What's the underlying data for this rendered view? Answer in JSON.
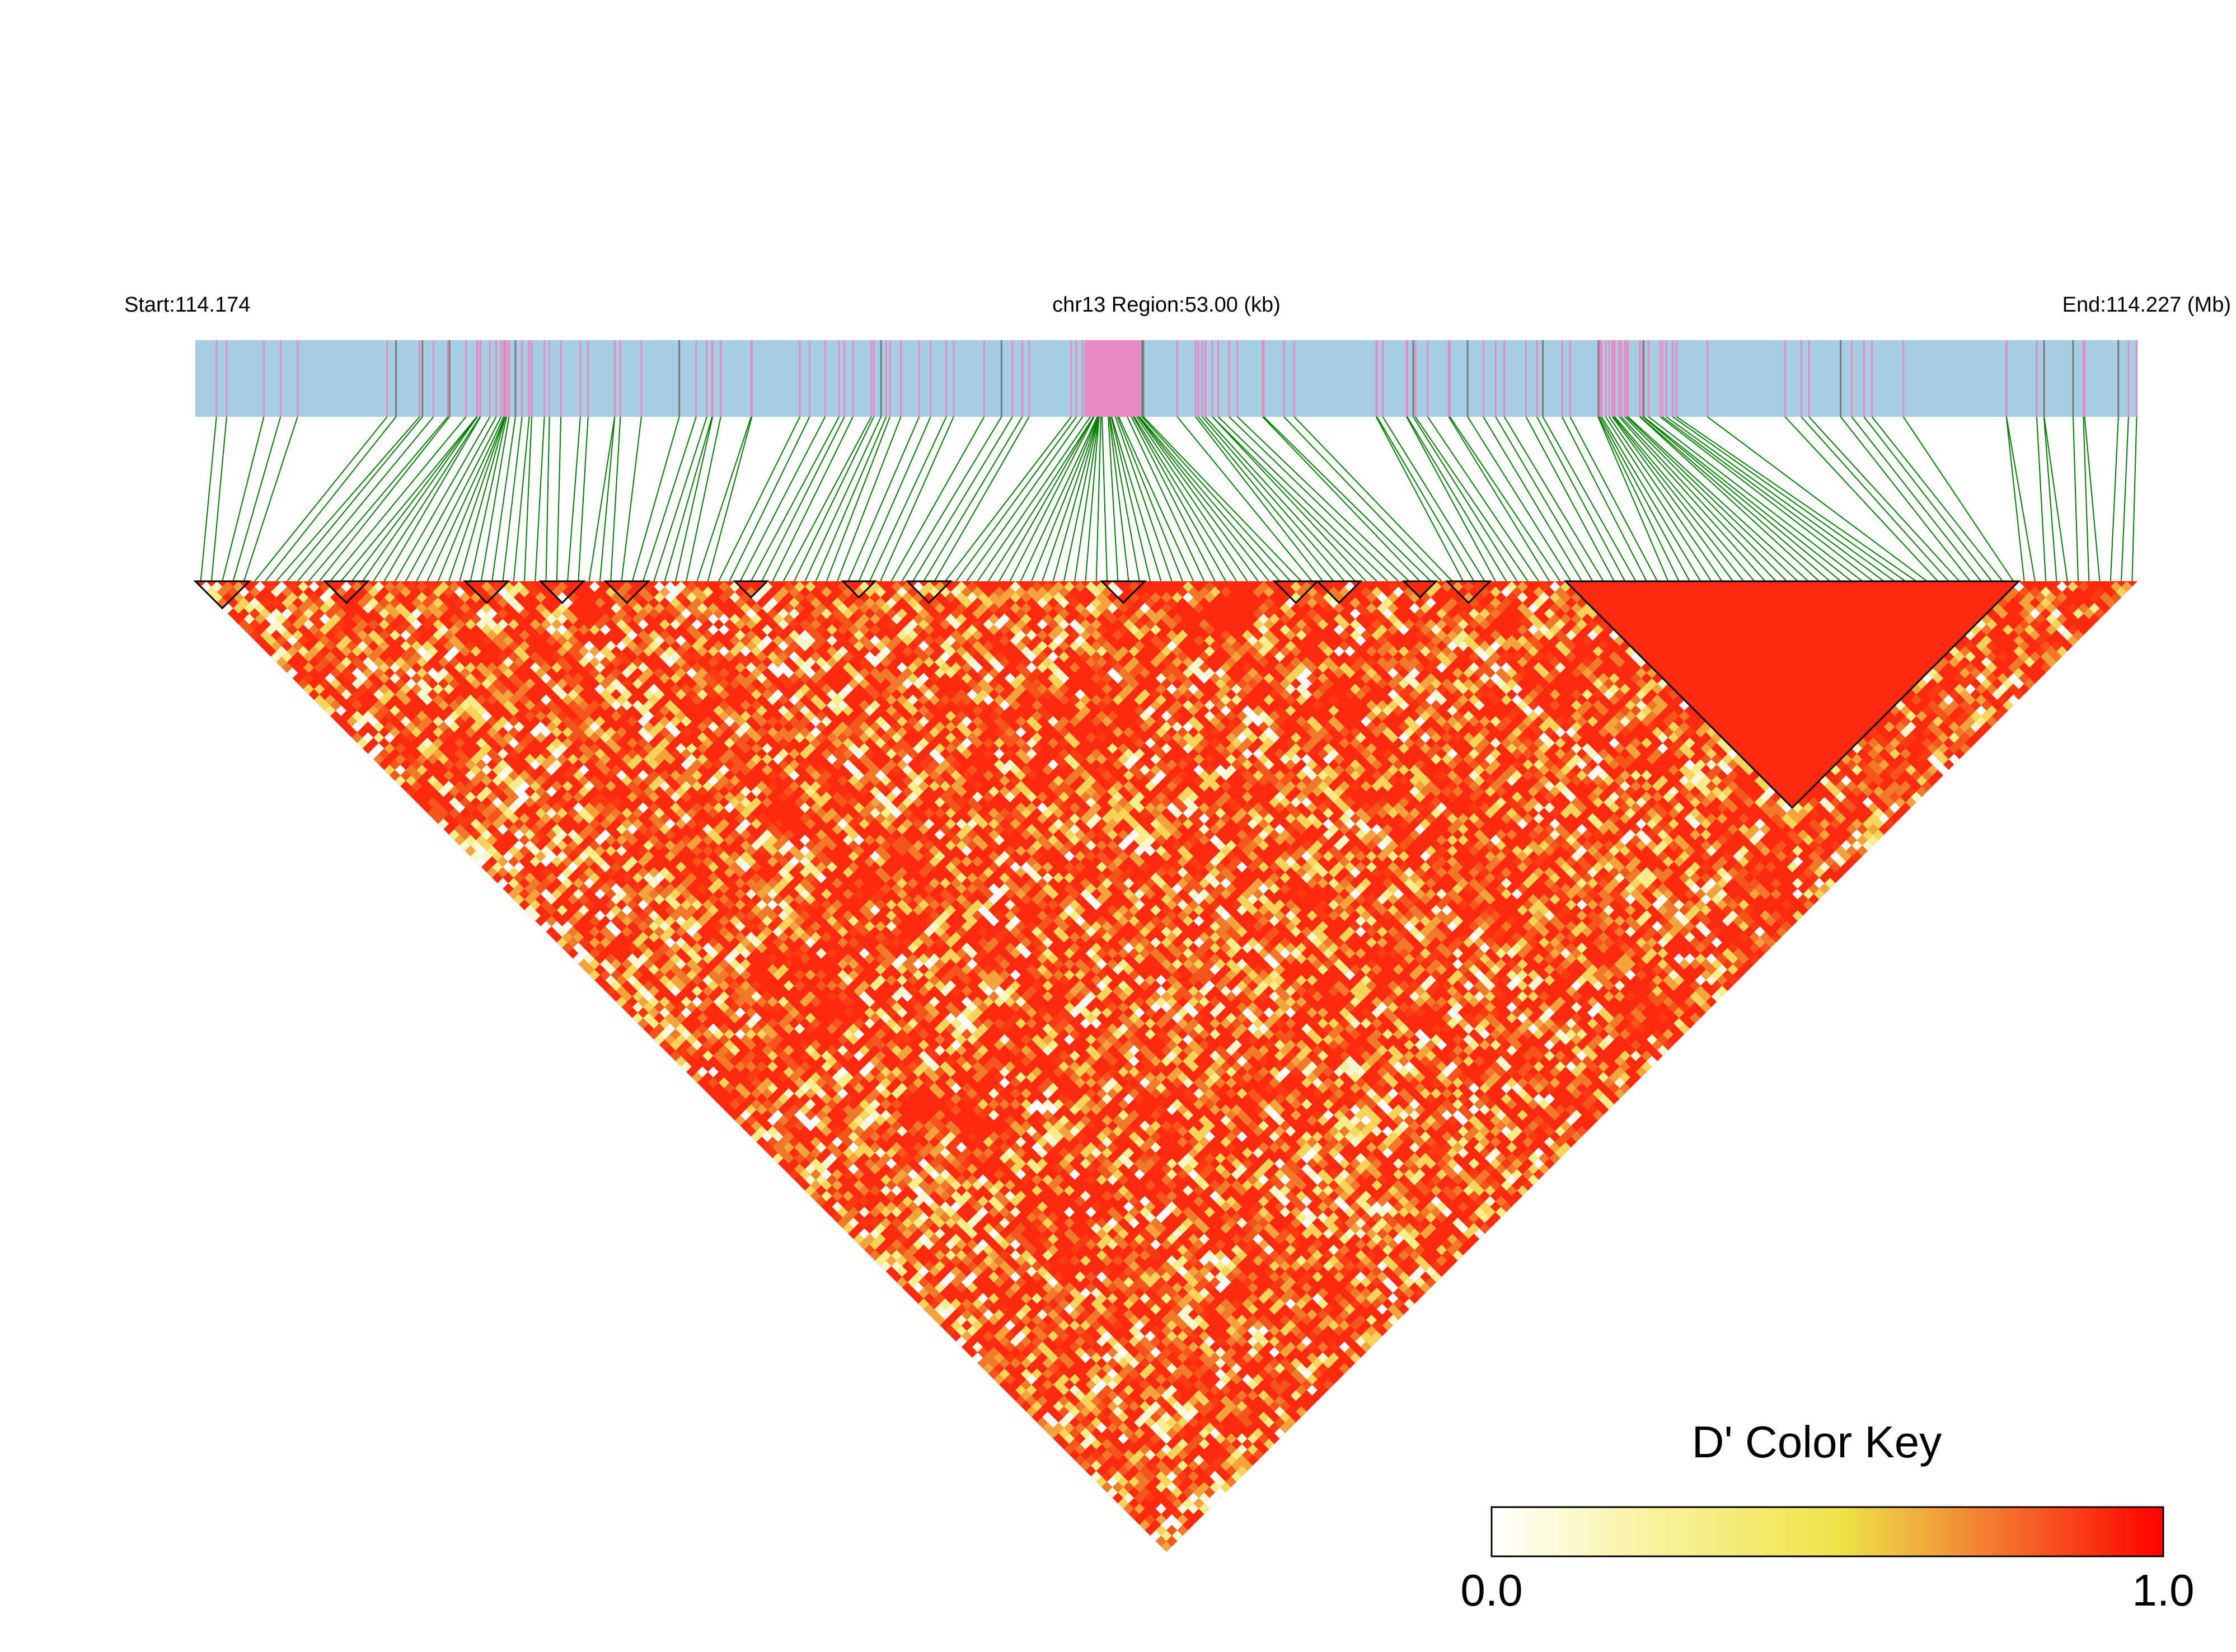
{
  "header": {
    "start_label": "Start:114.174",
    "region_label": "chr13 Region:53.00 (kb)",
    "end_label": "End:114.227 (Mb)"
  },
  "colors": {
    "track_bg": "#a6cee3",
    "track_marker": "#e78ac3",
    "track_marker_dark": "#7a7a7a",
    "connector": "#008000",
    "ld_high": "#ff0000",
    "ld_low": "#ffffff",
    "block_outline": "#000000"
  },
  "chart_data": {
    "type": "heatmap",
    "description_type": "LD heatmap (pairwise D')",
    "chromosome": "chr13",
    "region_start_mb": 114.174,
    "region_end_mb": 114.227,
    "region_size_kb": 53.0,
    "color_key": {
      "title": "D' Color Key",
      "min_label": "0.0",
      "max_label": "1.0",
      "range": [
        0.0,
        1.0
      ],
      "stops": [
        "#ffffff",
        "#f7f299",
        "#eee347",
        "#f09a3a",
        "#ff0000"
      ]
    }
  }
}
